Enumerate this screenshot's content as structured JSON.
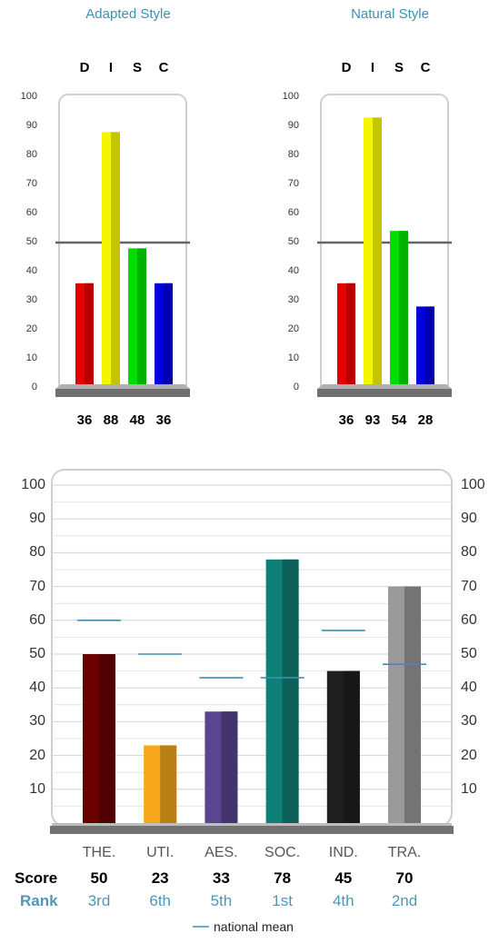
{
  "chart_data": [
    {
      "type": "bar",
      "title": "Adapted Style",
      "categories": [
        "D",
        "I",
        "S",
        "C"
      ],
      "values": [
        36,
        88,
        48,
        36
      ],
      "ylim": [
        0,
        100
      ],
      "yticks": [
        0,
        10,
        20,
        30,
        40,
        50,
        60,
        70,
        80,
        90,
        100
      ],
      "reference_line": 50,
      "colors": [
        "#e30000",
        "#f5f500",
        "#00dd00",
        "#0000dd"
      ]
    },
    {
      "type": "bar",
      "title": "Natural Style",
      "categories": [
        "D",
        "I",
        "S",
        "C"
      ],
      "values": [
        36,
        93,
        54,
        28
      ],
      "ylim": [
        0,
        100
      ],
      "yticks": [
        0,
        10,
        20,
        30,
        40,
        50,
        60,
        70,
        80,
        90,
        100
      ],
      "reference_line": 50,
      "colors": [
        "#e30000",
        "#f5f500",
        "#00dd00",
        "#0000dd"
      ]
    },
    {
      "type": "bar",
      "categories": [
        "THE.",
        "UTI.",
        "AES.",
        "SOC.",
        "IND.",
        "TRA."
      ],
      "values": [
        50,
        23,
        33,
        78,
        45,
        70
      ],
      "national_mean": [
        60,
        50,
        43,
        43,
        57,
        47
      ],
      "ranks": [
        "3rd",
        "6th",
        "5th",
        "1st",
        "4th",
        "2nd"
      ],
      "ylim": [
        0,
        100
      ],
      "yticks": [
        10,
        20,
        30,
        40,
        50,
        60,
        70,
        80,
        90,
        100
      ],
      "colors": [
        "#6b0000",
        "#f7a81a",
        "#5a4590",
        "#0e8078",
        "#1f1f1f",
        "#9a9a9a"
      ],
      "mean_color": "#3f8fb0",
      "row_labels": {
        "score": "Score",
        "rank": "Rank"
      },
      "legend": "national mean"
    }
  ]
}
